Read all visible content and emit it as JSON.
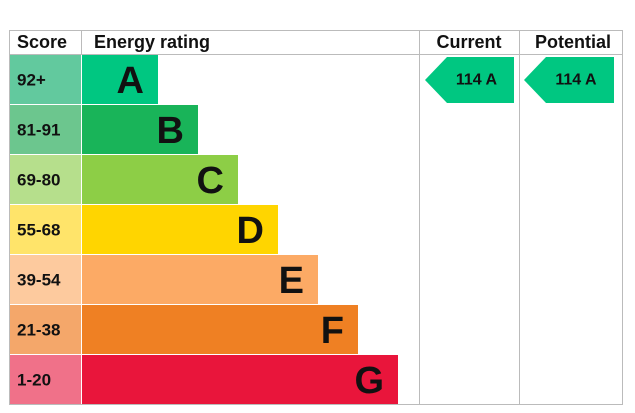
{
  "header": {
    "score": "Score",
    "rating": "Energy rating",
    "current": "Current",
    "potential": "Potential"
  },
  "rows": [
    {
      "score": "92+",
      "letter": "A",
      "color": "#00c781",
      "score_color": "#62c99e"
    },
    {
      "score": "81-91",
      "letter": "B",
      "color": "#19b459",
      "score_color": "#6cc68e"
    },
    {
      "score": "69-80",
      "letter": "C",
      "color": "#8dce46",
      "score_color": "#b6df8c"
    },
    {
      "score": "55-68",
      "letter": "D",
      "color": "#ffd500",
      "score_color": "#ffe46a"
    },
    {
      "score": "39-54",
      "letter": "E",
      "color": "#fcaa65",
      "score_color": "#fdca9e"
    },
    {
      "score": "21-38",
      "letter": "F",
      "color": "#ef8023",
      "score_color": "#f4a76a"
    },
    {
      "score": "1-20",
      "letter": "G",
      "color": "#e9153b",
      "score_color": "#f07189"
    }
  ],
  "current": {
    "label": "114 A",
    "color": "#00c781"
  },
  "potential": {
    "label": "114 A",
    "color": "#00c781"
  }
}
